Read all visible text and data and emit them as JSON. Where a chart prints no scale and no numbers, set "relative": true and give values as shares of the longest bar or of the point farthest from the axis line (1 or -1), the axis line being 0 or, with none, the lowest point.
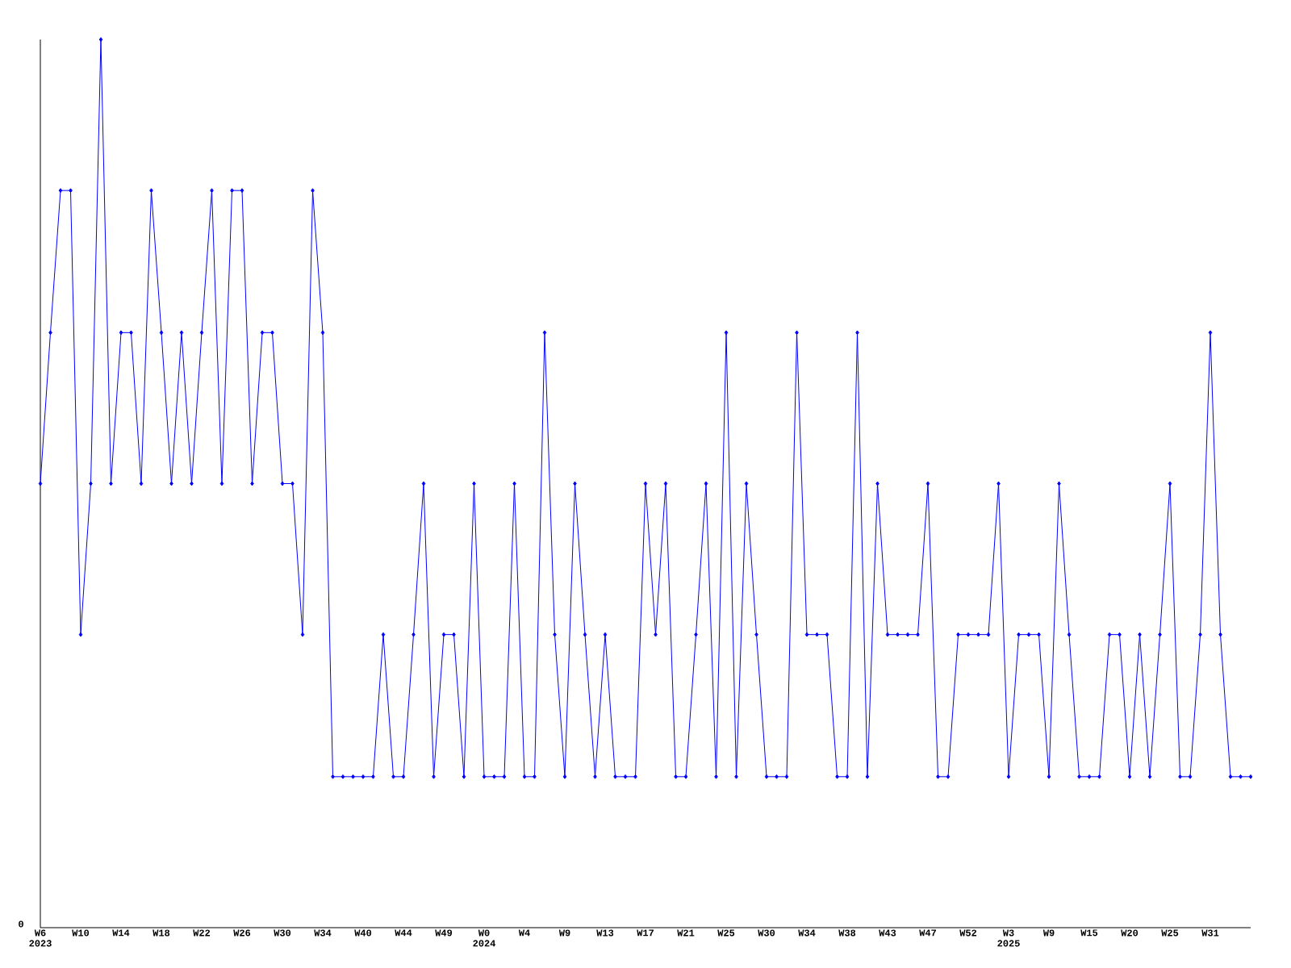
{
  "chart_data": {
    "type": "line",
    "relative": true,
    "color": "#0000ff",
    "marker": "diamond",
    "grid": false,
    "categories": [
      "W6",
      null,
      null,
      null,
      "W10",
      null,
      null,
      null,
      "W14",
      null,
      null,
      null,
      "W18",
      null,
      null,
      null,
      "W22",
      null,
      null,
      null,
      "W26",
      null,
      null,
      null,
      "W30",
      null,
      null,
      null,
      "W34",
      null,
      null,
      null,
      "W40",
      null,
      null,
      null,
      "W44",
      null,
      null,
      null,
      "W49",
      null,
      null,
      null,
      "W0",
      null,
      null,
      null,
      "W4",
      null,
      null,
      null,
      "W9",
      null,
      null,
      null,
      "W13",
      null,
      null,
      null,
      "W17",
      null,
      null,
      null,
      "W21",
      null,
      null,
      null,
      "W25",
      null,
      null,
      null,
      "W30",
      null,
      null,
      null,
      "W34",
      null,
      null,
      null,
      "W38",
      null,
      null,
      null,
      "W43",
      null,
      null,
      null,
      "W47",
      null,
      null,
      null,
      "W52",
      null,
      null,
      null,
      "W3",
      null,
      null,
      null,
      "W9",
      null,
      null,
      null,
      "W15",
      null,
      null,
      null,
      "W20",
      null,
      null,
      null,
      "W25",
      null,
      null,
      null,
      "W31",
      null,
      null,
      null,
      null
    ],
    "values": [
      0.5,
      0.67,
      0.83,
      0.83,
      0.33,
      0.5,
      1,
      0.5,
      0.67,
      0.67,
      0.5,
      0.83,
      0.67,
      0.5,
      0.67,
      0.5,
      0.67,
      0.83,
      0.5,
      0.83,
      0.83,
      0.5,
      0.67,
      0.67,
      0.5,
      0.5,
      0.33,
      0.83,
      0.67,
      0.17,
      0.17,
      0.17,
      0.17,
      0.17,
      0.33,
      0.17,
      0.17,
      0.33,
      0.5,
      0.17,
      0.33,
      0.33,
      0.17,
      0.5,
      0.17,
      0.17,
      0.17,
      0.5,
      0.17,
      0.17,
      0.67,
      0.33,
      0.17,
      0.5,
      0.33,
      0.17,
      0.33,
      0.17,
      0.17,
      0.17,
      0.5,
      0.33,
      0.5,
      0.17,
      0.17,
      0.33,
      0.5,
      0.17,
      0.67,
      0.17,
      0.5,
      0.33,
      0.17,
      0.17,
      0.17,
      0.67,
      0.33,
      0.33,
      0.33,
      0.17,
      0.17,
      0.67,
      0.17,
      0.5,
      0.33,
      0.33,
      0.33,
      0.33,
      0.5,
      0.17,
      0.17,
      0.33,
      0.33,
      0.33,
      0.33,
      0.5,
      0.17,
      0.33,
      0.33,
      0.33,
      0.17,
      0.5,
      0.33,
      0.17,
      0.17,
      0.17,
      0.33,
      0.33,
      0.17,
      0.33,
      0.17,
      0.33,
      0.5,
      0.17,
      0.17,
      0.33,
      0.67,
      0.33,
      0.17,
      0.17,
      0.17
    ],
    "annotations": [
      "0",
      "2023",
      "2024",
      "2025"
    ]
  }
}
